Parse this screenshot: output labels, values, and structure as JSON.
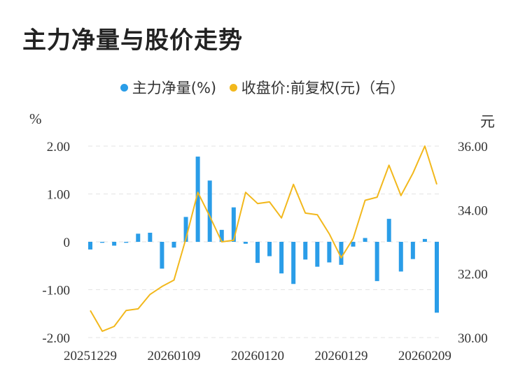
{
  "title": "主力净量与股价走势",
  "legend": [
    {
      "label": "主力净量(%)",
      "color": "#2a9de8"
    },
    {
      "label": "收盘价:前复权(元)（右）",
      "color": "#f2b81c"
    }
  ],
  "chart_data": {
    "type": "bar+line",
    "title": "主力净量与股价走势",
    "left_axis": {
      "unit": "%",
      "ticks": [
        "2.00",
        "1.00",
        "0",
        "-1.00",
        "-2.00"
      ],
      "ylim": [
        -2,
        2
      ]
    },
    "right_axis": {
      "unit": "元",
      "ticks": [
        "36.00",
        "34.00",
        "32.00",
        "30.00"
      ],
      "ylim": [
        30,
        36
      ]
    },
    "x_tick_labels": [
      "20251229",
      "20260109",
      "20260120",
      "20260129",
      "20260209"
    ],
    "x_tick_index": [
      0,
      7,
      14,
      21,
      28
    ],
    "series": [
      {
        "name": "主力净量(%)",
        "kind": "bar",
        "axis": "left",
        "values": [
          -0.16,
          -0.02,
          -0.08,
          -0.02,
          0.17,
          0.19,
          -0.56,
          -0.12,
          0.52,
          1.78,
          1.28,
          0.25,
          0.72,
          -0.04,
          -0.44,
          -0.3,
          -0.66,
          -0.88,
          -0.37,
          -0.52,
          -0.43,
          -0.48,
          -0.1,
          0.08,
          -0.82,
          0.48,
          -0.62,
          -0.36,
          0.06,
          -1.48
        ]
      },
      {
        "name": "收盘价:前复权(元)（右）",
        "kind": "line",
        "axis": "right",
        "values": [
          30.85,
          30.2,
          30.35,
          30.85,
          30.9,
          31.35,
          31.6,
          31.8,
          33.1,
          34.55,
          33.8,
          33.0,
          33.05,
          34.55,
          34.2,
          34.25,
          33.75,
          34.8,
          33.9,
          33.85,
          33.25,
          32.5,
          33.1,
          34.3,
          34.4,
          35.4,
          34.45,
          35.15,
          36.0,
          34.8
        ]
      }
    ],
    "grid": "horizontal dashed",
    "legend_position": "top-center"
  }
}
